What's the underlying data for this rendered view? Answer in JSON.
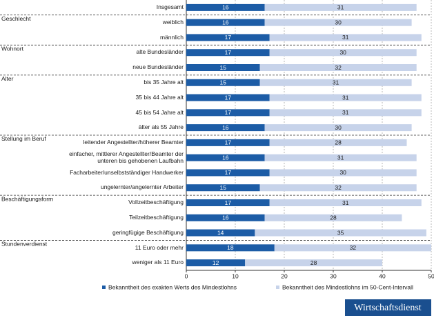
{
  "chart_data": {
    "type": "stacked-bar-horizontal",
    "categories": [
      "Insgesamt",
      "weiblich",
      "männlich",
      "alte Bundesländer",
      "neue Bundesländer",
      "bis 35 Jahre alt",
      "35 bis 44 Jahre alt",
      "45 bis 54 Jahre alt",
      "älter als 55 Jahre",
      "leitender Angestellter/höherer Beamter",
      "einfacher, mittlerer Angestellter/Beamter der unteren bis gehobenen Laufbahn",
      "Facharbeiter/unselbstständiger Handwerker",
      "ungelernter/angelernter Arbeiter",
      "Vollzeitbeschäftigung",
      "Teilzeitbeschäftigung",
      "geringfügige Beschäftigung",
      "11 Euro oder mehr",
      "weniger als 11 Euro"
    ],
    "groups": [
      null,
      "Geschlecht",
      null,
      "Wohnort",
      null,
      "Alter",
      null,
      null,
      null,
      "Stellung im Beruf",
      null,
      null,
      null,
      "Beschäftigungsform",
      null,
      null,
      "Stundenverdienst",
      null
    ],
    "series": [
      {
        "name": "Bekanntheit des exakten Werts des Mindestlohns",
        "color": "#1c5ca6",
        "values": [
          16,
          16,
          17,
          17,
          15,
          15,
          17,
          17,
          16,
          17,
          16,
          17,
          15,
          17,
          16,
          14,
          18,
          12
        ]
      },
      {
        "name": "Bekanntheit des Mindestlohns im 50-Cent-Intervall",
        "color": "#c7d3ea",
        "values": [
          31,
          30,
          31,
          30,
          32,
          31,
          31,
          31,
          30,
          28,
          31,
          30,
          32,
          31,
          28,
          35,
          32,
          28
        ]
      }
    ],
    "xlim": [
      0,
      50
    ],
    "xticks": [
      0,
      10,
      20,
      30,
      40,
      50
    ],
    "source": "Wirtschaftsdienst"
  }
}
